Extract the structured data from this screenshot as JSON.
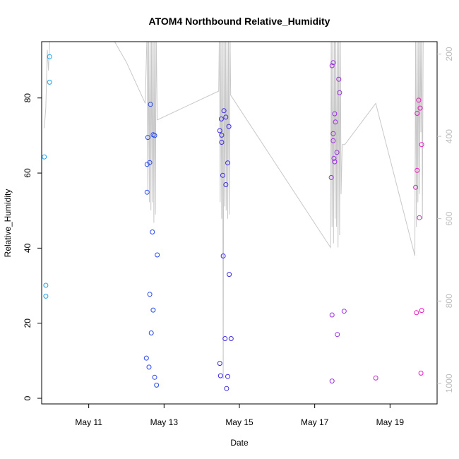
{
  "chart_data": {
    "type": "scatter",
    "title": "ATOM4 Northbound Relative_Humidity",
    "xlabel": "Date",
    "ylabel": "Relative_Humidity",
    "x_unit": "day of May",
    "xlim": [
      9.75,
      20.25
    ],
    "ylim": [
      -1.5,
      95
    ],
    "x_ticks": [
      {
        "value": 11,
        "label": "May 11"
      },
      {
        "value": 13,
        "label": "May 13"
      },
      {
        "value": 15,
        "label": "May 15"
      },
      {
        "value": 17,
        "label": "May 17"
      },
      {
        "value": 19,
        "label": "May 19"
      }
    ],
    "y_ticks": [
      0,
      20,
      40,
      60,
      80
    ],
    "y2_ticks": [
      200,
      400,
      600,
      800,
      1000
    ],
    "y2_lim": [
      170,
      1050
    ],
    "y2_reversed": true,
    "colors": {
      "axis": "#000000",
      "secondary_line": "#c8c8c8",
      "secondary_axis": "#bdbdbd"
    },
    "points": [
      {
        "x": 9.82,
        "y": 64.3,
        "color": "#1ba0f0"
      },
      {
        "x": 9.86,
        "y": 30.1,
        "color": "#1ba0f0"
      },
      {
        "x": 9.86,
        "y": 27.2,
        "color": "#1ba0f0"
      },
      {
        "x": 9.96,
        "y": 91.0,
        "color": "#1ba0f0"
      },
      {
        "x": 9.96,
        "y": 84.2,
        "color": "#1ba0f0"
      },
      {
        "x": 12.53,
        "y": 10.7,
        "color": "#2848f0"
      },
      {
        "x": 12.55,
        "y": 62.3,
        "color": "#2848f0"
      },
      {
        "x": 12.55,
        "y": 54.9,
        "color": "#2848f0"
      },
      {
        "x": 12.57,
        "y": 69.5,
        "color": "#2848f0"
      },
      {
        "x": 12.6,
        "y": 8.3,
        "color": "#2848f0"
      },
      {
        "x": 12.62,
        "y": 27.7,
        "color": "#2848f0"
      },
      {
        "x": 12.62,
        "y": 62.8,
        "color": "#2848f0"
      },
      {
        "x": 12.64,
        "y": 78.3,
        "color": "#2848f0"
      },
      {
        "x": 12.66,
        "y": 17.4,
        "color": "#2848f0"
      },
      {
        "x": 12.69,
        "y": 44.3,
        "color": "#2848f0"
      },
      {
        "x": 12.71,
        "y": 70.2,
        "color": "#2848f0"
      },
      {
        "x": 12.71,
        "y": 23.5,
        "color": "#2848f0"
      },
      {
        "x": 12.75,
        "y": 70.0,
        "color": "#2848f0"
      },
      {
        "x": 12.75,
        "y": 5.6,
        "color": "#2848f0"
      },
      {
        "x": 12.8,
        "y": 3.5,
        "color": "#2848f0"
      },
      {
        "x": 12.82,
        "y": 38.2,
        "color": "#2848f0"
      },
      {
        "x": 14.48,
        "y": 9.3,
        "color": "#3a2ae8"
      },
      {
        "x": 14.48,
        "y": 71.3,
        "color": "#3a2ae8"
      },
      {
        "x": 14.5,
        "y": 6.0,
        "color": "#3a2ae8"
      },
      {
        "x": 14.52,
        "y": 74.4,
        "color": "#3a2ae8"
      },
      {
        "x": 14.53,
        "y": 70.1,
        "color": "#3a2ae8"
      },
      {
        "x": 14.53,
        "y": 68.2,
        "color": "#3a2ae8"
      },
      {
        "x": 14.56,
        "y": 59.4,
        "color": "#3a2ae8"
      },
      {
        "x": 14.57,
        "y": 37.9,
        "color": "#3a2ae8"
      },
      {
        "x": 14.59,
        "y": 76.6,
        "color": "#3a2ae8"
      },
      {
        "x": 14.62,
        "y": 15.9,
        "color": "#3a2ae8"
      },
      {
        "x": 14.64,
        "y": 74.9,
        "color": "#3a2ae8"
      },
      {
        "x": 14.64,
        "y": 56.9,
        "color": "#3a2ae8"
      },
      {
        "x": 14.66,
        "y": 2.6,
        "color": "#3a2ae8"
      },
      {
        "x": 14.69,
        "y": 62.7,
        "color": "#3a2ae8"
      },
      {
        "x": 14.69,
        "y": 5.8,
        "color": "#3a2ae8"
      },
      {
        "x": 14.72,
        "y": 72.4,
        "color": "#3a2ae8"
      },
      {
        "x": 14.73,
        "y": 33.0,
        "color": "#3a2ae8"
      },
      {
        "x": 14.78,
        "y": 15.9,
        "color": "#3a2ae8"
      },
      {
        "x": 17.44,
        "y": 58.8,
        "color": "#9a2ae0"
      },
      {
        "x": 17.46,
        "y": 88.6,
        "color": "#9a2ae0"
      },
      {
        "x": 17.46,
        "y": 22.2,
        "color": "#9a2ae0"
      },
      {
        "x": 17.46,
        "y": 4.6,
        "color": "#9a2ae0"
      },
      {
        "x": 17.49,
        "y": 89.4,
        "color": "#9a2ae0"
      },
      {
        "x": 17.49,
        "y": 70.5,
        "color": "#9a2ae0"
      },
      {
        "x": 17.49,
        "y": 68.6,
        "color": "#9a2ae0"
      },
      {
        "x": 17.51,
        "y": 63.9,
        "color": "#9a2ae0"
      },
      {
        "x": 17.53,
        "y": 75.8,
        "color": "#9a2ae0"
      },
      {
        "x": 17.53,
        "y": 63.0,
        "color": "#9a2ae0"
      },
      {
        "x": 17.55,
        "y": 73.6,
        "color": "#9a2ae0"
      },
      {
        "x": 17.59,
        "y": 65.5,
        "color": "#9a2ae0"
      },
      {
        "x": 17.6,
        "y": 17.0,
        "color": "#9a2ae0"
      },
      {
        "x": 17.64,
        "y": 85.0,
        "color": "#9a2ae0"
      },
      {
        "x": 17.66,
        "y": 81.4,
        "color": "#9a2ae0"
      },
      {
        "x": 17.78,
        "y": 23.2,
        "color": "#9a2ae0"
      },
      {
        "x": 18.62,
        "y": 5.4,
        "color": "#c81ed0"
      },
      {
        "x": 19.68,
        "y": 56.2,
        "color": "#e81ac4"
      },
      {
        "x": 19.7,
        "y": 22.8,
        "color": "#e81ac4"
      },
      {
        "x": 19.72,
        "y": 75.9,
        "color": "#e81ac4"
      },
      {
        "x": 19.72,
        "y": 60.7,
        "color": "#e81ac4"
      },
      {
        "x": 19.76,
        "y": 79.4,
        "color": "#e81ac4"
      },
      {
        "x": 19.78,
        "y": 48.1,
        "color": "#e81ac4"
      },
      {
        "x": 19.8,
        "y": 77.3,
        "color": "#e81ac4"
      },
      {
        "x": 19.82,
        "y": 6.7,
        "color": "#e81ac4"
      },
      {
        "x": 19.84,
        "y": 67.6,
        "color": "#e81ac4"
      },
      {
        "x": 19.84,
        "y": 23.4,
        "color": "#e81ac4"
      }
    ],
    "secondary_line": [
      [
        9.82,
        380
      ],
      [
        9.86,
        330
      ],
      [
        9.9,
        190
      ],
      [
        9.93,
        240
      ],
      [
        9.98,
        140
      ],
      [
        10.2,
        120
      ],
      [
        11.0,
        110
      ],
      [
        11.5,
        140
      ],
      [
        12.0,
        220
      ],
      [
        12.5,
        320
      ],
      [
        12.55,
        140
      ],
      [
        12.57,
        540
      ],
      [
        12.59,
        140
      ],
      [
        12.61,
        560
      ],
      [
        12.63,
        140
      ],
      [
        12.65,
        580
      ],
      [
        12.67,
        140
      ],
      [
        12.69,
        560
      ],
      [
        12.71,
        140
      ],
      [
        12.73,
        610
      ],
      [
        12.75,
        140
      ],
      [
        12.77,
        590
      ],
      [
        12.79,
        140
      ],
      [
        12.82,
        360
      ],
      [
        14.45,
        290
      ],
      [
        14.47,
        140
      ],
      [
        14.49,
        560
      ],
      [
        14.51,
        140
      ],
      [
        14.53,
        600
      ],
      [
        14.55,
        140
      ],
      [
        14.57,
        990
      ],
      [
        14.59,
        140
      ],
      [
        14.61,
        570
      ],
      [
        14.63,
        140
      ],
      [
        14.65,
        580
      ],
      [
        14.67,
        140
      ],
      [
        14.69,
        600
      ],
      [
        14.71,
        140
      ],
      [
        14.73,
        590
      ],
      [
        14.75,
        140
      ],
      [
        14.77,
        300
      ],
      [
        17.42,
        670
      ],
      [
        17.44,
        140
      ],
      [
        17.46,
        620
      ],
      [
        17.48,
        140
      ],
      [
        17.5,
        660
      ],
      [
        17.52,
        140
      ],
      [
        17.54,
        600
      ],
      [
        17.56,
        140
      ],
      [
        17.58,
        620
      ],
      [
        17.6,
        140
      ],
      [
        17.62,
        670
      ],
      [
        17.64,
        140
      ],
      [
        17.66,
        640
      ],
      [
        17.68,
        140
      ],
      [
        17.7,
        540
      ],
      [
        17.73,
        420
      ],
      [
        17.8,
        420
      ],
      [
        18.62,
        320
      ],
      [
        19.66,
        690
      ],
      [
        19.68,
        140
      ],
      [
        19.7,
        620
      ],
      [
        19.72,
        140
      ],
      [
        19.74,
        560
      ],
      [
        19.76,
        140
      ],
      [
        19.78,
        540
      ],
      [
        19.8,
        140
      ],
      [
        19.82,
        390
      ],
      [
        19.84,
        140
      ],
      [
        19.86,
        600
      ],
      [
        19.88,
        140
      ]
    ]
  }
}
